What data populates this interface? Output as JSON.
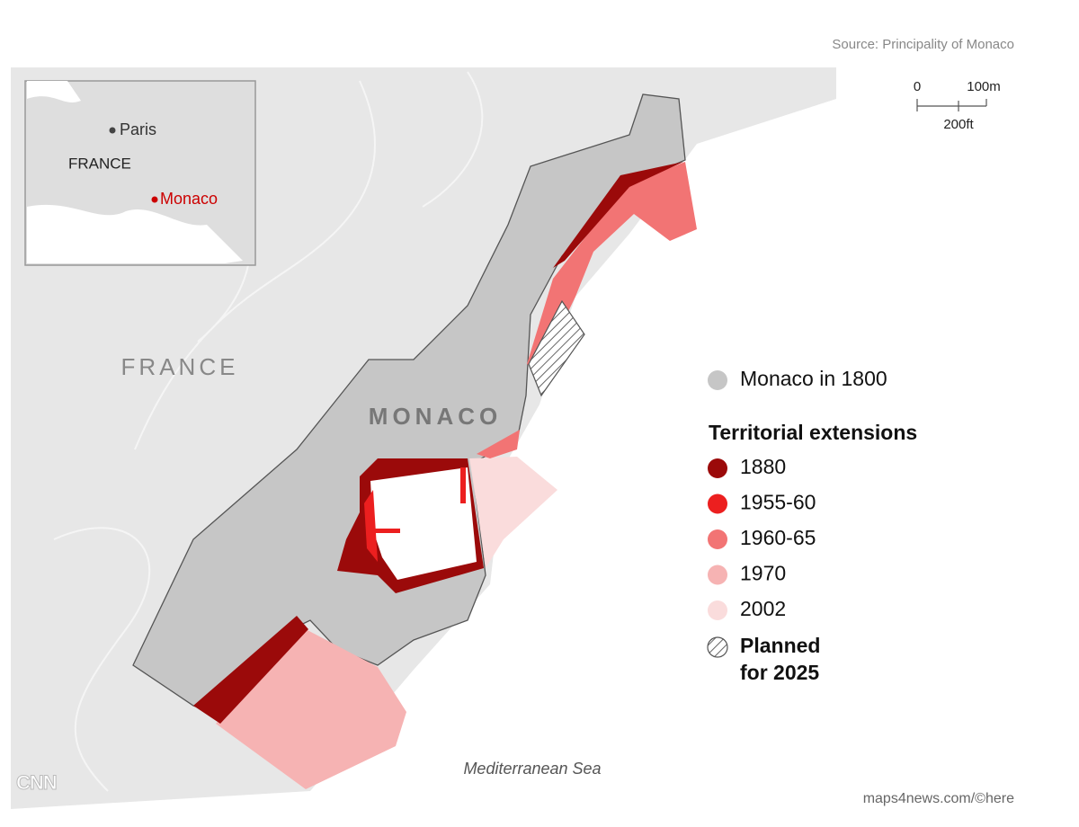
{
  "header": {
    "source": "Source: Principality of Monaco"
  },
  "scale": {
    "zero": "0",
    "metric": "100m",
    "imperial": "200ft"
  },
  "inset": {
    "paris": "Paris",
    "france": "FRANCE",
    "monaco": "Monaco"
  },
  "map": {
    "france": "FRANCE",
    "monaco": "MONACO",
    "sea": "Mediterranean Sea"
  },
  "legend": {
    "base": {
      "label": "Monaco in 1800",
      "color": "#c6c6c6"
    },
    "heading": "Territorial extensions",
    "items": [
      {
        "label": "1880",
        "color": "#9b0a0a"
      },
      {
        "label": "1955-60",
        "color": "#ec1f1f"
      },
      {
        "label": "1960-65",
        "color": "#f27474"
      },
      {
        "label": "1970",
        "color": "#f6b3b3"
      },
      {
        "label": "2002",
        "color": "#fadcdc"
      }
    ],
    "planned": {
      "lines": [
        "Planned",
        "for 2025"
      ]
    }
  },
  "footer": {
    "logo": "CNN",
    "credit": "maps4news.com/©here"
  }
}
